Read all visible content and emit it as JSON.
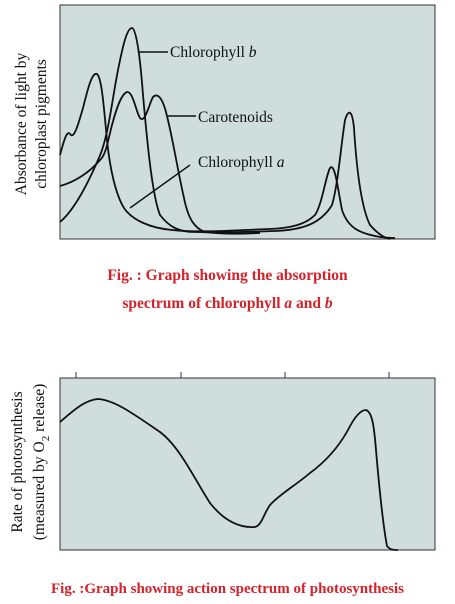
{
  "chart_data": [
    {
      "type": "line",
      "title": "",
      "ylabel_line1": "Absorbance of light by",
      "ylabel_line2": "chloroplast pigments",
      "series": [
        {
          "name": "Chlorophyll b",
          "label_text": "Chlorophyll ",
          "label_italic": "b",
          "color": "#111111"
        },
        {
          "name": "Carotenoids",
          "label_text": "Carotenoids",
          "label_italic": "",
          "color": "#111111"
        },
        {
          "name": "Chlorophyll a",
          "label_text": "Chlorophyll ",
          "label_italic": "a",
          "color": "#111111"
        }
      ],
      "caption_line1": "Fig. : Graph showing the absorption",
      "caption_line2_a": "spectrum of chlorophyll ",
      "caption_line2_b": "a",
      "caption_line2_c": " and ",
      "caption_line2_d": "b",
      "plot_bg": "#cfdddd"
    },
    {
      "type": "line",
      "title": "",
      "ylabel_line1": "Rate of photosynthesis",
      "ylabel_line2_pre": "(measured by O",
      "ylabel_line2_sub": "2",
      "ylabel_line2_post": " release)",
      "series": [
        {
          "name": "Action spectrum",
          "color": "#111111"
        }
      ],
      "caption": "Fig. :Graph showing action spectrum of photosynthesis",
      "plot_bg": "#cfdddd"
    }
  ],
  "colors": {
    "caption_red": "#d2232a",
    "plot_bg": "#cfdddd",
    "line": "#111111"
  }
}
